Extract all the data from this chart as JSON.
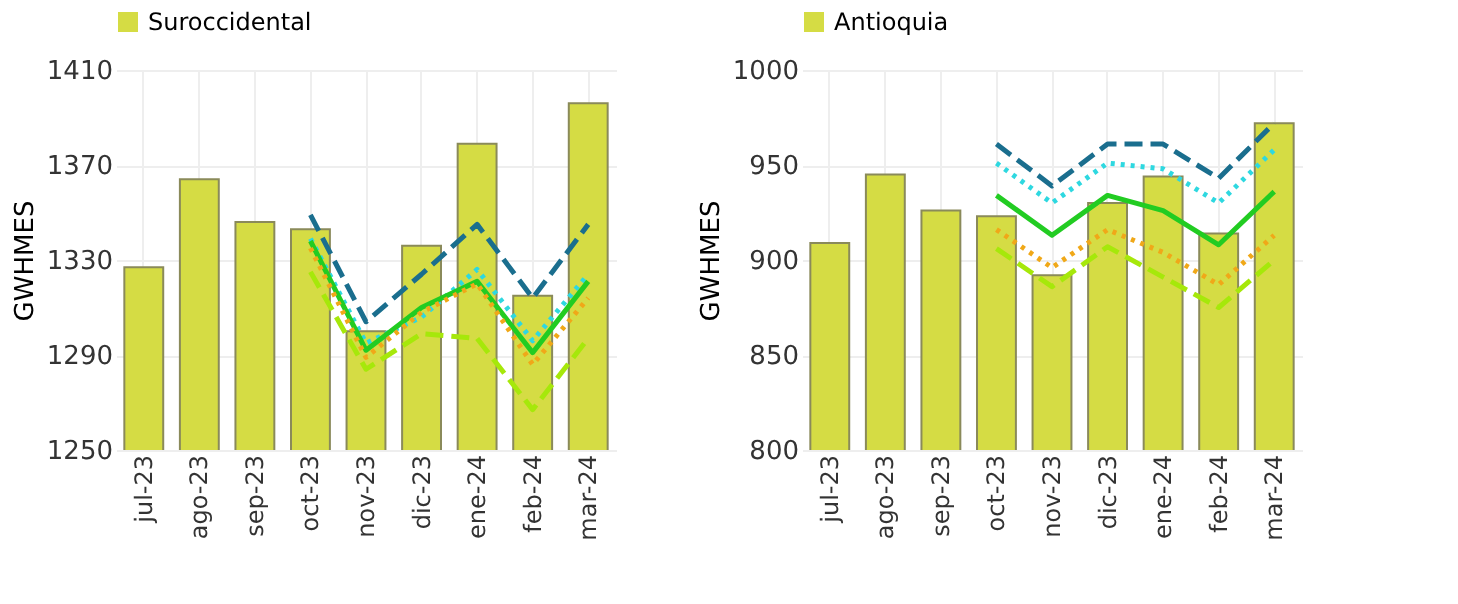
{
  "chart_data": [
    {
      "type": "bar",
      "ylabel": "GWHMES",
      "categories": [
        "jul-23",
        "ago-23",
        "sep-23",
        "oct-23",
        "nov-23",
        "dic-23",
        "ene-24",
        "feb-24",
        "mar-24"
      ],
      "ylim": [
        1250,
        1410
      ],
      "yticks": [
        1250,
        1290,
        1330,
        1370,
        1410
      ],
      "grid": true,
      "legend": "top",
      "series": [
        {
          "name": "Suroccidental",
          "color": "#d5dc44",
          "values": [
            1327,
            1364,
            1346,
            1343,
            1300,
            1336,
            1379,
            1315,
            1396
          ]
        },
        {
          "type": "line",
          "color": "#1a6e8e",
          "line_style": "dashed",
          "values": [
            null,
            null,
            null,
            1349,
            1304,
            1324,
            1345,
            1314,
            1345
          ]
        },
        {
          "type": "line",
          "color": "#2ed8e0",
          "line_style": "dotted",
          "values": [
            null,
            null,
            null,
            1339,
            1295,
            1306,
            1326,
            1296,
            1324
          ]
        },
        {
          "type": "line",
          "color": "#22cc22",
          "line_style": "solid",
          "values": [
            null,
            null,
            null,
            1338,
            1292,
            1310,
            1321,
            1291,
            1321
          ]
        },
        {
          "type": "line",
          "color": "#f0a818",
          "line_style": "dotted",
          "values": [
            null,
            null,
            null,
            1335,
            1289,
            1308,
            1320,
            1286,
            1314
          ]
        },
        {
          "type": "line",
          "color": "#a6e80a",
          "line_style": "dashed",
          "values": [
            null,
            null,
            null,
            1325,
            1284,
            1299,
            1297,
            1267,
            1297
          ]
        }
      ]
    },
    {
      "type": "bar",
      "ylabel": "GWHMES",
      "categories": [
        "jul-23",
        "ago-23",
        "sep-23",
        "oct-23",
        "nov-23",
        "dic-23",
        "ene-24",
        "feb-24",
        "mar-24"
      ],
      "ylim": [
        800,
        1000
      ],
      "yticks": [
        800,
        850,
        900,
        950,
        1000
      ],
      "grid": true,
      "legend": "top",
      "series": [
        {
          "name": "Antioquia",
          "color": "#d5dc44",
          "values": [
            909,
            945,
            926,
            923,
            892,
            930,
            944,
            914,
            972
          ]
        },
        {
          "type": "line",
          "color": "#1a6e8e",
          "line_style": "dashed",
          "values": [
            null,
            null,
            null,
            961,
            939,
            961,
            961,
            943,
            972
          ]
        },
        {
          "type": "line",
          "color": "#2ed8e0",
          "line_style": "dotted",
          "values": [
            null,
            null,
            null,
            951,
            930,
            951,
            948,
            930,
            958
          ]
        },
        {
          "type": "line",
          "color": "#22cc22",
          "line_style": "solid",
          "values": [
            null,
            null,
            null,
            934,
            913,
            934,
            926,
            908,
            936
          ]
        },
        {
          "type": "line",
          "color": "#f0a818",
          "line_style": "dotted",
          "values": [
            null,
            null,
            null,
            916,
            896,
            916,
            904,
            887,
            913
          ]
        },
        {
          "type": "line",
          "color": "#a6e80a",
          "line_style": "dashed",
          "values": [
            null,
            null,
            null,
            906,
            886,
            907,
            891,
            875,
            900
          ]
        }
      ]
    }
  ]
}
